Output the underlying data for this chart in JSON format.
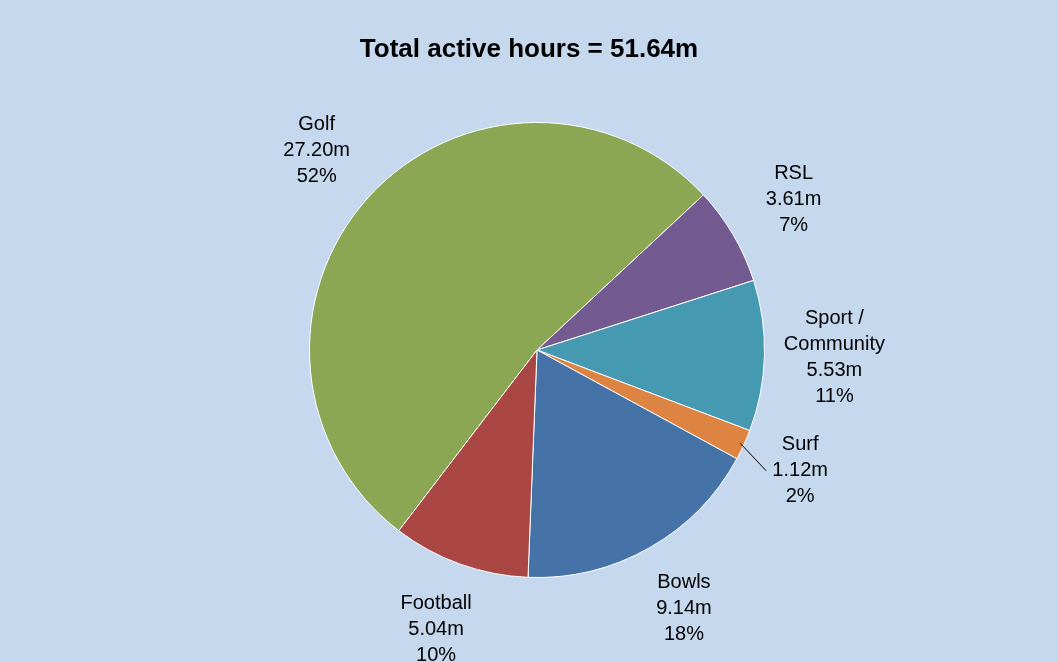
{
  "chart_data": {
    "type": "pie",
    "title": "Total active hours = 51.64m",
    "categories": [
      "Golf",
      "RSL",
      "Sport / Community",
      "Surf",
      "Bowls",
      "Football"
    ],
    "values": [
      27.2,
      3.61,
      5.53,
      1.12,
      9.14,
      5.04
    ],
    "colors": [
      "#8ba753",
      "#735a91",
      "#4599b0",
      "#de8442",
      "#4572a7",
      "#aa4643"
    ],
    "value_labels": [
      "27.20m",
      "3.61m",
      "5.53m",
      "1.12m",
      "9.14m",
      "5.04m"
    ],
    "annotations": [
      "52%",
      "7%",
      "11%",
      "2%",
      "18%",
      "10%"
    ],
    "legend": false
  }
}
